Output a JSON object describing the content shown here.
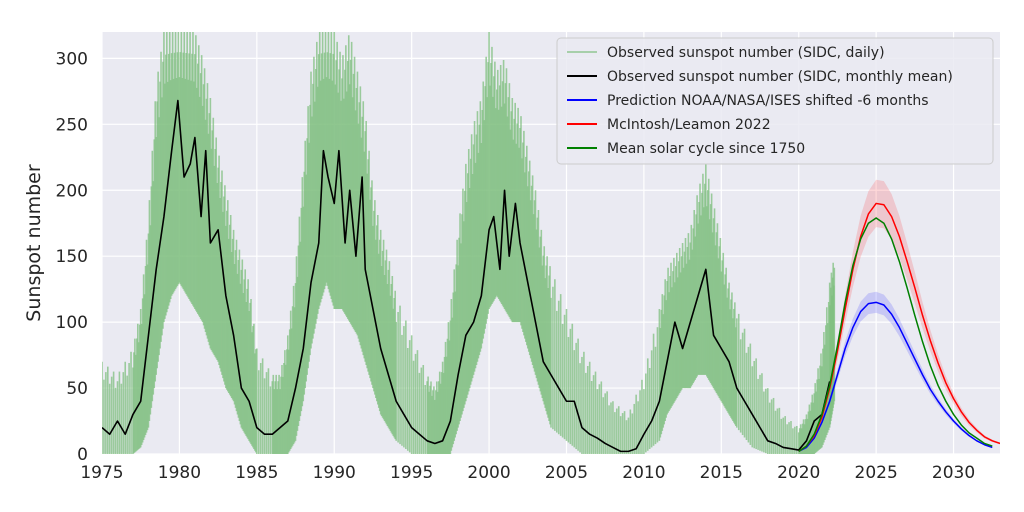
{
  "chart_data": {
    "type": "line",
    "title": "",
    "xlabel": "",
    "ylabel": "Sunspot number",
    "xlim": [
      1975,
      2033
    ],
    "ylim": [
      0,
      320
    ],
    "xticks": [
      1975,
      1980,
      1985,
      1990,
      1995,
      2000,
      2005,
      2010,
      2015,
      2020,
      2025,
      2030
    ],
    "yticks": [
      0,
      50,
      100,
      150,
      200,
      250,
      300
    ],
    "grid": true,
    "legend_position": "top-right",
    "series": [
      {
        "name": "Observed sunspot number (SIDC, daily)",
        "color": "#7fbf7f",
        "style": "band",
        "x": [
          1975.0,
          1976.0,
          1977.0,
          1977.5,
          1978.0,
          1978.5,
          1979.0,
          1979.5,
          1980.0,
          1980.5,
          1981.0,
          1981.5,
          1982.0,
          1982.5,
          1983.0,
          1983.5,
          1984.0,
          1984.5,
          1985.0,
          1986.0,
          1986.5,
          1987.0,
          1987.5,
          1988.0,
          1988.5,
          1989.0,
          1989.5,
          1990.0,
          1990.5,
          1991.0,
          1991.5,
          1992.0,
          1992.5,
          1993.0,
          1993.5,
          1994.0,
          1995.0,
          1996.0,
          1996.5,
          1997.0,
          1997.5,
          1998.0,
          1998.5,
          1999.0,
          1999.5,
          2000.0,
          2000.5,
          2001.0,
          2001.5,
          2002.0,
          2002.5,
          2003.0,
          2003.5,
          2004.0,
          2005.0,
          2006.0,
          2007.0,
          2008.0,
          2009.0,
          2010.0,
          2011.0,
          2011.5,
          2012.0,
          2012.5,
          2013.0,
          2013.5,
          2014.0,
          2014.5,
          2015.0,
          2015.5,
          2016.0,
          2017.0,
          2018.0,
          2019.0,
          2020.0,
          2020.5,
          2021.0,
          2021.5,
          2022.0,
          2022.3
        ],
        "low": [
          0,
          0,
          0,
          5,
          20,
          60,
          100,
          120,
          130,
          120,
          110,
          100,
          80,
          70,
          50,
          40,
          20,
          10,
          0,
          0,
          0,
          0,
          10,
          40,
          80,
          110,
          130,
          110,
          110,
          100,
          90,
          70,
          50,
          30,
          20,
          10,
          0,
          0,
          0,
          0,
          0,
          20,
          40,
          60,
          80,
          110,
          120,
          110,
          100,
          100,
          80,
          60,
          40,
          20,
          10,
          0,
          0,
          0,
          0,
          0,
          10,
          30,
          40,
          50,
          50,
          60,
          60,
          50,
          40,
          30,
          20,
          5,
          0,
          0,
          0,
          0,
          0,
          5,
          20,
          40
        ],
        "high": [
          70,
          60,
          80,
          110,
          180,
          280,
          320,
          320,
          320,
          320,
          320,
          300,
          270,
          230,
          200,
          170,
          150,
          130,
          80,
          60,
          60,
          90,
          140,
          220,
          290,
          320,
          320,
          320,
          300,
          320,
          290,
          260,
          200,
          170,
          150,
          120,
          90,
          60,
          50,
          70,
          110,
          170,
          220,
          250,
          270,
          320,
          290,
          300,
          270,
          260,
          230,
          200,
          160,
          140,
          110,
          80,
          60,
          40,
          30,
          60,
          110,
          140,
          150,
          160,
          170,
          200,
          220,
          190,
          160,
          130,
          110,
          80,
          50,
          30,
          20,
          30,
          50,
          80,
          130,
          150
        ]
      },
      {
        "name": "Observed sunspot number (SIDC, monthly mean)",
        "color": "#000000",
        "x": [
          1975.0,
          1975.5,
          1976.0,
          1976.5,
          1977.0,
          1977.5,
          1978.0,
          1978.5,
          1979.0,
          1979.5,
          1979.9,
          1980.3,
          1980.7,
          1981.0,
          1981.4,
          1981.7,
          1982.0,
          1982.5,
          1983.0,
          1983.5,
          1984.0,
          1984.5,
          1985.0,
          1985.5,
          1986.0,
          1986.5,
          1987.0,
          1987.5,
          1988.0,
          1988.5,
          1989.0,
          1989.3,
          1989.6,
          1990.0,
          1990.3,
          1990.7,
          1991.0,
          1991.4,
          1991.8,
          1992.0,
          1992.5,
          1993.0,
          1993.5,
          1994.0,
          1994.5,
          1995.0,
          1995.5,
          1996.0,
          1996.5,
          1997.0,
          1997.5,
          1998.0,
          1998.5,
          1999.0,
          1999.5,
          2000.0,
          2000.3,
          2000.7,
          2001.0,
          2001.3,
          2001.7,
          2002.0,
          2002.5,
          2003.0,
          2003.5,
          2004.0,
          2004.5,
          2005.0,
          2005.5,
          2006.0,
          2006.5,
          2007.0,
          2007.5,
          2008.0,
          2008.5,
          2009.0,
          2009.5,
          2010.0,
          2010.5,
          2011.0,
          2011.5,
          2012.0,
          2012.5,
          2013.0,
          2013.5,
          2014.0,
          2014.5,
          2015.0,
          2015.5,
          2016.0,
          2016.5,
          2017.0,
          2017.5,
          2018.0,
          2018.5,
          2019.0,
          2019.5,
          2020.0,
          2020.5,
          2021.0,
          2021.5,
          2022.0
        ],
        "y": [
          20,
          15,
          25,
          15,
          30,
          40,
          90,
          140,
          180,
          230,
          268,
          210,
          220,
          240,
          180,
          230,
          160,
          170,
          120,
          90,
          50,
          40,
          20,
          15,
          15,
          20,
          25,
          50,
          80,
          130,
          160,
          230,
          210,
          190,
          230,
          160,
          200,
          150,
          210,
          140,
          110,
          80,
          60,
          40,
          30,
          20,
          15,
          10,
          8,
          10,
          25,
          60,
          90,
          100,
          120,
          170,
          180,
          140,
          200,
          150,
          190,
          160,
          130,
          100,
          70,
          60,
          50,
          40,
          40,
          20,
          15,
          12,
          8,
          5,
          2,
          2,
          4,
          15,
          25,
          40,
          70,
          100,
          80,
          100,
          120,
          140,
          90,
          80,
          70,
          50,
          40,
          30,
          20,
          10,
          8,
          5,
          4,
          3,
          10,
          25,
          30,
          55
        ]
      },
      {
        "name": "Prediction NOAA/NASA/ISES shifted -6 months",
        "color": "#0000ff",
        "x": [
          2020.0,
          2020.5,
          2021.0,
          2021.5,
          2022.0,
          2022.5,
          2023.0,
          2023.5,
          2024.0,
          2024.5,
          2025.0,
          2025.5,
          2026.0,
          2026.5,
          2027.0,
          2027.5,
          2028.0,
          2028.5,
          2029.0,
          2029.5,
          2030.0,
          2030.5,
          2031.0,
          2031.5,
          2032.0,
          2032.5
        ],
        "y": [
          2,
          5,
          12,
          24,
          40,
          60,
          80,
          96,
          108,
          114,
          115,
          113,
          106,
          96,
          84,
          72,
          60,
          49,
          40,
          32,
          25,
          19,
          14,
          10,
          7,
          5
        ],
        "band": 8
      },
      {
        "name": "McIntosh/Leamon 2022",
        "color": "#ff0000",
        "x": [
          2020.0,
          2020.5,
          2021.0,
          2021.5,
          2022.0,
          2022.5,
          2023.0,
          2023.5,
          2024.0,
          2024.5,
          2025.0,
          2025.5,
          2026.0,
          2026.5,
          2027.0,
          2027.5,
          2028.0,
          2028.5,
          2029.0,
          2029.5,
          2030.0,
          2030.5,
          2031.0,
          2031.5,
          2032.0,
          2032.5,
          2033.0
        ],
        "y": [
          2,
          6,
          14,
          28,
          50,
          78,
          110,
          140,
          165,
          182,
          190,
          189,
          180,
          165,
          146,
          126,
          105,
          86,
          69,
          54,
          42,
          32,
          24,
          18,
          13,
          10,
          8
        ],
        "band": 18
      },
      {
        "name": "Mean solar cycle since 1750",
        "color": "#008000",
        "x": [
          2020.0,
          2020.5,
          2021.0,
          2021.5,
          2022.0,
          2022.5,
          2023.0,
          2023.5,
          2024.0,
          2024.5,
          2025.0,
          2025.5,
          2026.0,
          2026.5,
          2027.0,
          2027.5,
          2028.0,
          2028.5,
          2029.0,
          2029.5,
          2030.0,
          2030.5,
          2031.0,
          2031.5,
          2032.0,
          2032.5
        ],
        "y": [
          2,
          6,
          15,
          30,
          52,
          82,
          115,
          143,
          163,
          175,
          179,
          175,
          163,
          146,
          126,
          105,
          85,
          67,
          52,
          40,
          30,
          22,
          16,
          12,
          8,
          6
        ]
      }
    ]
  }
}
